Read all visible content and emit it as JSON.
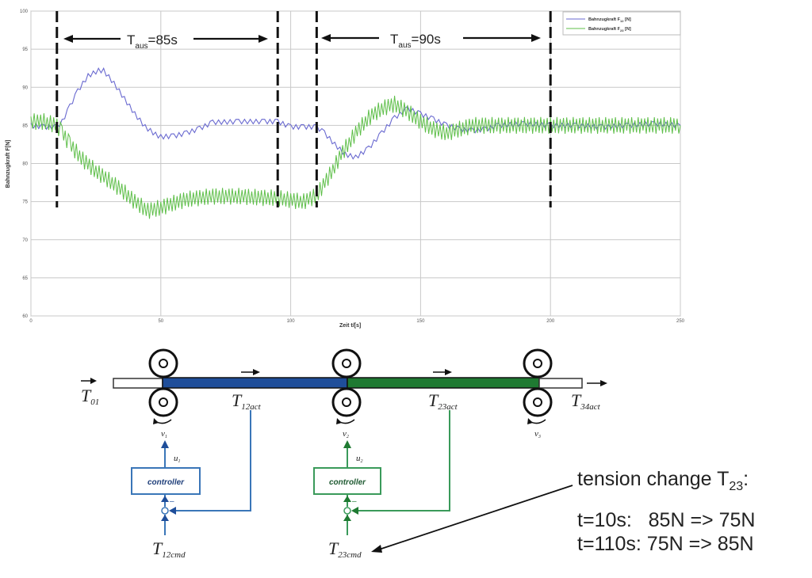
{
  "chart_data": {
    "type": "line",
    "title": "",
    "xlabel": "Zeit t/[s]",
    "ylabel": "Bahnzugkraft F[N]",
    "xlim": [
      0,
      250
    ],
    "ylim": [
      60,
      100
    ],
    "x_ticks": [
      0,
      50,
      100,
      150,
      200,
      250
    ],
    "y_ticks": [
      60,
      65,
      70,
      75,
      80,
      85,
      90,
      95,
      100
    ],
    "grid": true,
    "legend_position": "upper right",
    "series": [
      {
        "name": "Bahnzugkraft F12 [N]",
        "color": "#6a6ad0",
        "x": [
          0,
          5,
          10,
          12,
          15,
          18,
          22,
          26,
          28,
          32,
          36,
          40,
          44,
          48,
          50,
          55,
          60,
          65,
          70,
          80,
          90,
          95,
          100,
          105,
          110,
          113,
          117,
          121,
          125,
          130,
          135,
          140,
          145,
          150,
          155,
          160,
          165,
          170,
          175,
          180,
          190,
          200,
          210,
          220,
          230,
          240,
          250
        ],
        "values": [
          85.0,
          84.8,
          84.8,
          85.5,
          87.5,
          89.5,
          91.5,
          92.2,
          92.2,
          90.5,
          88.5,
          86.5,
          84.8,
          83.8,
          83.5,
          83.6,
          84.0,
          84.6,
          85.4,
          85.5,
          85.5,
          85.5,
          84.8,
          84.8,
          84.8,
          84.0,
          82.5,
          81.2,
          80.8,
          82.0,
          84.0,
          86.0,
          87.2,
          86.5,
          85.8,
          85.0,
          84.5,
          84.3,
          84.5,
          85.0,
          85.2,
          85.0,
          85.0,
          84.8,
          85.0,
          85.2,
          85.0
        ]
      },
      {
        "name": "Bahnzugkraft F23 [N]",
        "color": "#5fbf4a",
        "x": [
          0,
          5,
          10,
          12,
          15,
          20,
          25,
          30,
          35,
          40,
          45,
          50,
          55,
          60,
          70,
          80,
          90,
          95,
          100,
          105,
          110,
          115,
          120,
          125,
          130,
          135,
          140,
          145,
          150,
          155,
          160,
          165,
          170,
          180,
          190,
          200,
          210,
          220,
          230,
          240,
          250
        ],
        "values": [
          85.5,
          85.5,
          85.0,
          84.0,
          82.5,
          80.5,
          79.0,
          77.8,
          76.5,
          75.0,
          73.8,
          74.2,
          74.8,
          75.3,
          75.7,
          75.7,
          75.5,
          75.5,
          75.2,
          75.0,
          75.8,
          78.5,
          81.5,
          84.0,
          86.0,
          87.2,
          87.8,
          86.8,
          85.5,
          84.5,
          84.0,
          84.5,
          85.0,
          85.0,
          85.0,
          85.0,
          85.0,
          85.0,
          85.0,
          85.0,
          85.0
        ]
      }
    ],
    "annotations": [
      {
        "type": "vline",
        "x": 10,
        "style": "dashed"
      },
      {
        "type": "vline",
        "x": 95,
        "style": "dashed"
      },
      {
        "type": "vline",
        "x": 110,
        "style": "dashed"
      },
      {
        "type": "vline",
        "x": 200,
        "style": "dashed"
      },
      {
        "type": "span_arrow",
        "x_from": 10,
        "x_to": 95,
        "label": "T_aus=85s"
      },
      {
        "type": "span_arrow",
        "x_from": 110,
        "x_to": 200,
        "label": "T_aus=90s"
      }
    ]
  },
  "chart": {
    "xlabel": "Zeit t/[s]",
    "ylabel": "Bahnzugkraft F[N]",
    "x_tick_labels": [
      "0",
      "50",
      "100",
      "150",
      "200",
      "250"
    ],
    "y_tick_labels": [
      "100",
      "95",
      "90",
      "85",
      "80",
      "75",
      "70",
      "65",
      "60"
    ],
    "legend": {
      "f12_prefix": "Bahnzugkraft F",
      "f12_sub": "12",
      "f12_suffix": " [N]",
      "f23_prefix": "Bahnzugkraft F",
      "f23_sub": "23",
      "f23_suffix": " [N]"
    },
    "span1": {
      "t": "T",
      "sub": "aus",
      "val": "=85s"
    },
    "span2": {
      "t": "T",
      "sub": "aus",
      "val": "=90s"
    }
  },
  "diagram": {
    "t01": {
      "main": "T",
      "sub": "01"
    },
    "t12act": {
      "main": "T",
      "sub": "12act"
    },
    "t23act": {
      "main": "T",
      "sub": "23act"
    },
    "t34act": {
      "main": "T",
      "sub": "34act"
    },
    "t12cmd": {
      "main": "T",
      "sub": "12cmd"
    },
    "t23cmd": {
      "main": "T",
      "sub": "23cmd"
    },
    "v1": "v",
    "v1_sub": "1",
    "v2": "v",
    "v2_sub": "2",
    "v3": "v",
    "v3_sub": "3",
    "u1": "u",
    "u1_sub": "1",
    "u2": "u",
    "u2_sub": "2",
    "controller1_label": "controller",
    "controller2_label": "controller",
    "minus1": "–",
    "minus2": "–",
    "colors": {
      "blue": "#1f4e9a",
      "green": "#1f7a32",
      "ctrl_blue": "#3a76b8",
      "ctrl_green": "#3a9a5a"
    }
  },
  "tension": {
    "title_prefix": "tension change T",
    "title_sub": "23",
    "title_suffix": ":",
    "lines": [
      "t=10s:   85N => 75N",
      "t=110s: 75N => 85N"
    ]
  }
}
